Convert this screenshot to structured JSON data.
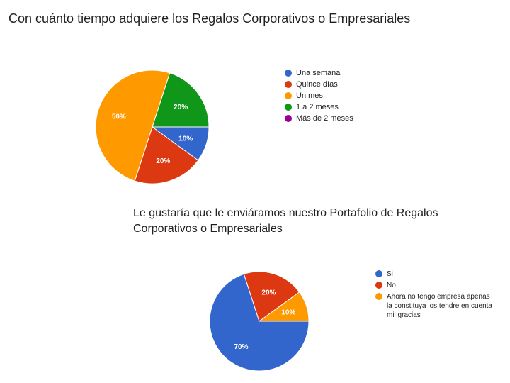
{
  "chart_data": [
    {
      "type": "pie",
      "title": "Con cuánto tiempo adquiere los Regalos Corporativos o Empresariales",
      "legend_position": "right",
      "slices": [
        {
          "label": "Una semana",
          "value": 10,
          "pct_label": "10%",
          "color": "#3366cc"
        },
        {
          "label": "Quince días",
          "value": 20,
          "pct_label": "20%",
          "color": "#dc3912"
        },
        {
          "label": "Un mes",
          "value": 50,
          "pct_label": "50%",
          "color": "#ff9900"
        },
        {
          "label": "1 a 2 meses",
          "value": 20,
          "pct_label": "20%",
          "color": "#109618"
        },
        {
          "label": "Más de 2 meses",
          "value": 0,
          "pct_label": "",
          "color": "#990099"
        }
      ]
    },
    {
      "type": "pie",
      "title_lines": [
        "Le gustaría que le enviáramos nuestro Portafolio de Regalos",
        "Corporativos o Empresariales"
      ],
      "legend_position": "right",
      "slices": [
        {
          "label": "Si",
          "value": 70,
          "pct_label": "70%",
          "color": "#3366cc"
        },
        {
          "label": "No",
          "value": 20,
          "pct_label": "20%",
          "color": "#dc3912"
        },
        {
          "label": "Ahora no tengo empresa apenas la constituya los tendre en cuenta mil gracias",
          "value": 10,
          "pct_label": "10%",
          "color": "#ff9900"
        }
      ]
    }
  ]
}
